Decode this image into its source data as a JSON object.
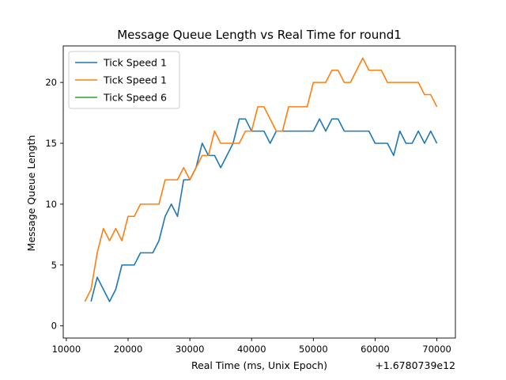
{
  "chart_data": {
    "type": "line",
    "title": "Message Queue Length vs Real Time for round1",
    "xlabel": "Real Time (ms, Unix Epoch)",
    "ylabel": "Message Queue Length",
    "x_offset_label": "+1.6780739e12",
    "xlim": [
      9500,
      73000
    ],
    "ylim": [
      -1,
      23
    ],
    "xticks": [
      10000,
      20000,
      30000,
      40000,
      50000,
      60000,
      70000
    ],
    "yticks": [
      0,
      5,
      10,
      15,
      20
    ],
    "grid": false,
    "legend_position": "upper-left",
    "series": [
      {
        "name": "Tick Speed 1",
        "color": "#1f77b4",
        "x": [
          14000,
          15000,
          16000,
          17000,
          18000,
          19000,
          20000,
          21000,
          22000,
          23000,
          24000,
          25000,
          26000,
          27000,
          28000,
          29000,
          30000,
          31000,
          32000,
          33000,
          34000,
          35000,
          36000,
          37000,
          38000,
          39000,
          40000,
          41000,
          42000,
          43000,
          44000,
          45000,
          46000,
          47000,
          48000,
          49000,
          50000,
          51000,
          52000,
          53000,
          54000,
          55000,
          56000,
          57000,
          58000,
          59000,
          60000,
          61000,
          62000,
          63000,
          64000,
          65000,
          66000,
          67000,
          68000,
          69000,
          70000
        ],
        "y": [
          2,
          4,
          3,
          2,
          3,
          5,
          5,
          5,
          6,
          6,
          6,
          7,
          9,
          10,
          9,
          12,
          12,
          13,
          15,
          14,
          14,
          13,
          14,
          15,
          17,
          17,
          16,
          16,
          16,
          15,
          16,
          16,
          16,
          16,
          16,
          16,
          16,
          17,
          16,
          17,
          17,
          16,
          16,
          16,
          16,
          16,
          15,
          15,
          15,
          14,
          16,
          15,
          15,
          16,
          15,
          16,
          15
        ]
      },
      {
        "name": "Tick Speed 1",
        "color": "#ff7f0e",
        "x": [
          13000,
          14000,
          15000,
          16000,
          17000,
          18000,
          19000,
          20000,
          21000,
          22000,
          23000,
          24000,
          25000,
          26000,
          27000,
          28000,
          29000,
          30000,
          31000,
          32000,
          33000,
          34000,
          35000,
          36000,
          37000,
          38000,
          39000,
          40000,
          41000,
          42000,
          43000,
          44000,
          45000,
          46000,
          47000,
          48000,
          49000,
          50000,
          51000,
          52000,
          53000,
          54000,
          55000,
          56000,
          57000,
          58000,
          59000,
          60000,
          61000,
          62000,
          63000,
          64000,
          65000,
          66000,
          67000,
          68000,
          69000,
          70000
        ],
        "y": [
          2,
          3,
          6,
          8,
          7,
          8,
          7,
          9,
          9,
          10,
          10,
          10,
          10,
          12,
          12,
          12,
          13,
          12,
          13,
          14,
          14,
          16,
          15,
          15,
          15,
          15,
          16,
          16,
          18,
          18,
          17,
          16,
          16,
          18,
          18,
          18,
          18,
          20,
          20,
          20,
          21,
          21,
          20,
          20,
          21,
          22,
          21,
          21,
          21,
          20,
          20,
          20,
          20,
          20,
          20,
          19,
          19,
          18
        ]
      },
      {
        "name": "Tick Speed 6",
        "color": "#2ca02c",
        "x": [],
        "y": []
      }
    ]
  }
}
